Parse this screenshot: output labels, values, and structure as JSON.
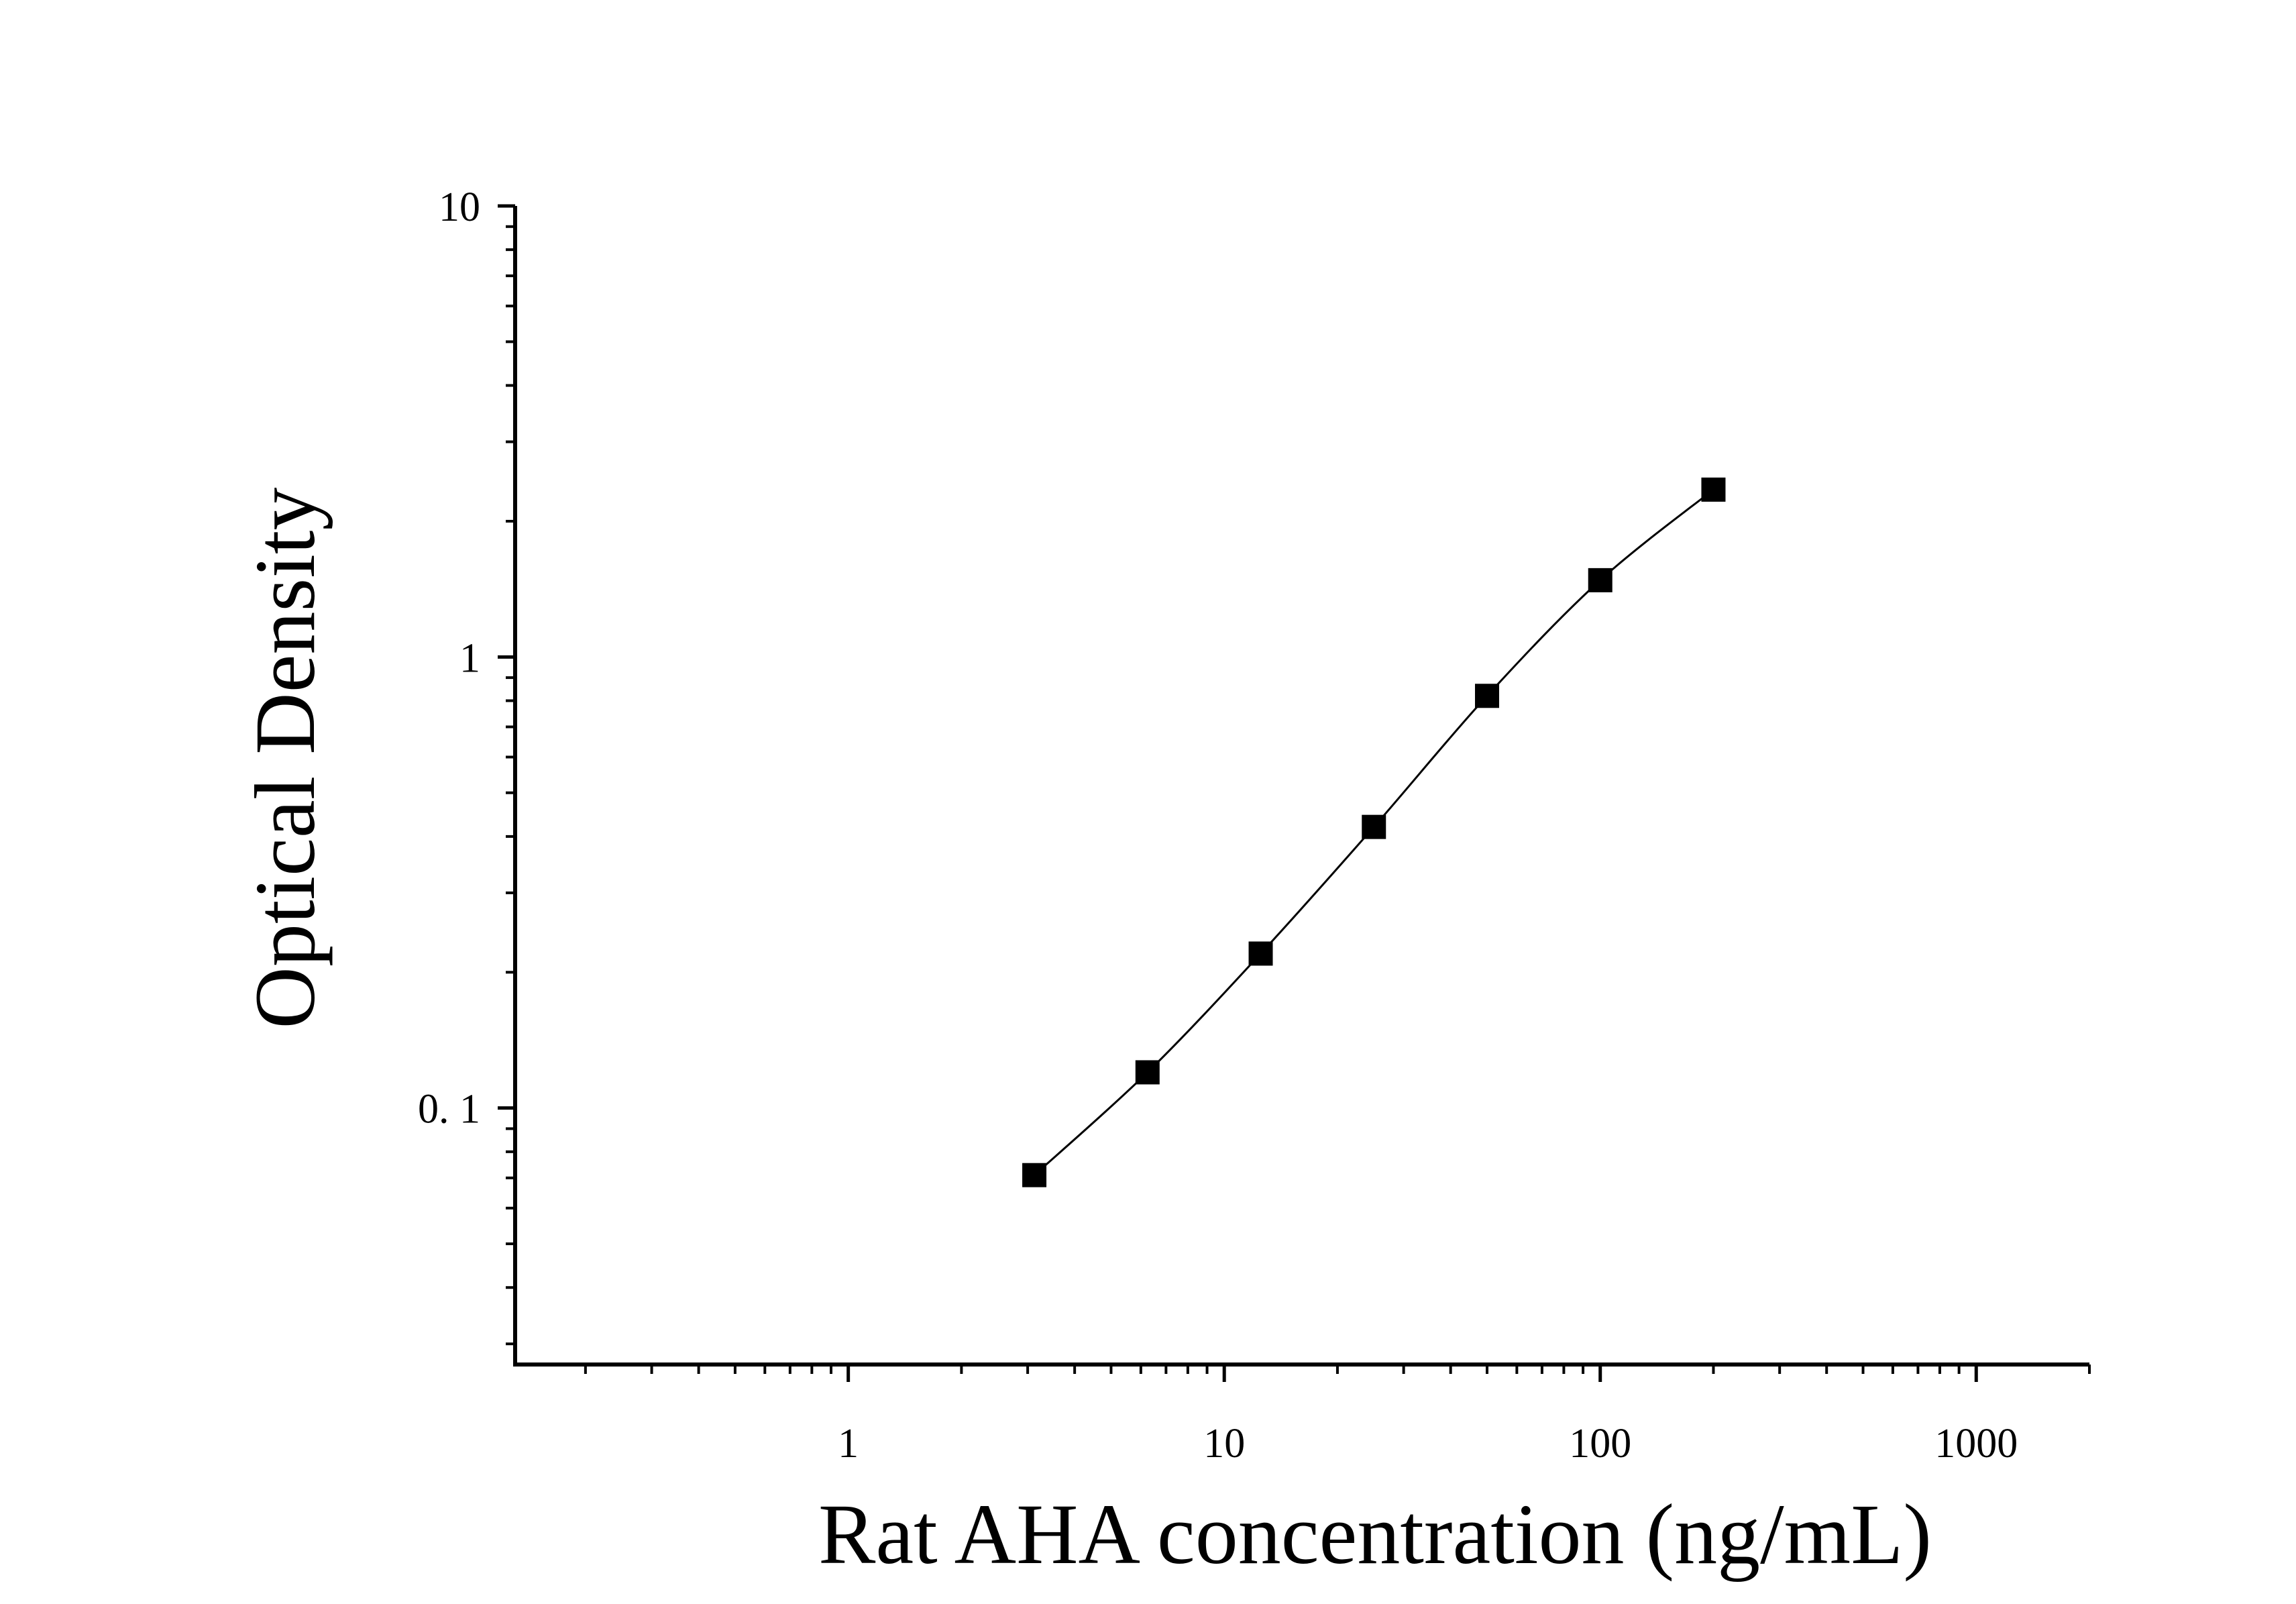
{
  "chart_data": {
    "type": "scatter",
    "title": "",
    "xlabel": "Rat AHA concentration (ng/mL)",
    "ylabel": "Optical Density",
    "x_scale": "log",
    "y_scale": "log",
    "xlim": [
      0.13,
      2000
    ],
    "ylim": [
      0.027,
      10
    ],
    "x_ticks": [
      1,
      10,
      100,
      1000
    ],
    "x_tick_labels": [
      "1",
      "10",
      "100",
      "1000"
    ],
    "y_ticks": [
      0.1,
      1,
      10
    ],
    "y_tick_labels": [
      "0. 1",
      "1",
      "10"
    ],
    "grid": false,
    "legend": "none",
    "series": [
      {
        "x": [
          3.125,
          6.25,
          12.5,
          25,
          50,
          100,
          200
        ],
        "y": [
          0.071,
          0.12,
          0.22,
          0.42,
          0.82,
          1.48,
          2.35
        ],
        "marker": "square",
        "line": "smooth-fit",
        "color": "#000000"
      }
    ]
  }
}
